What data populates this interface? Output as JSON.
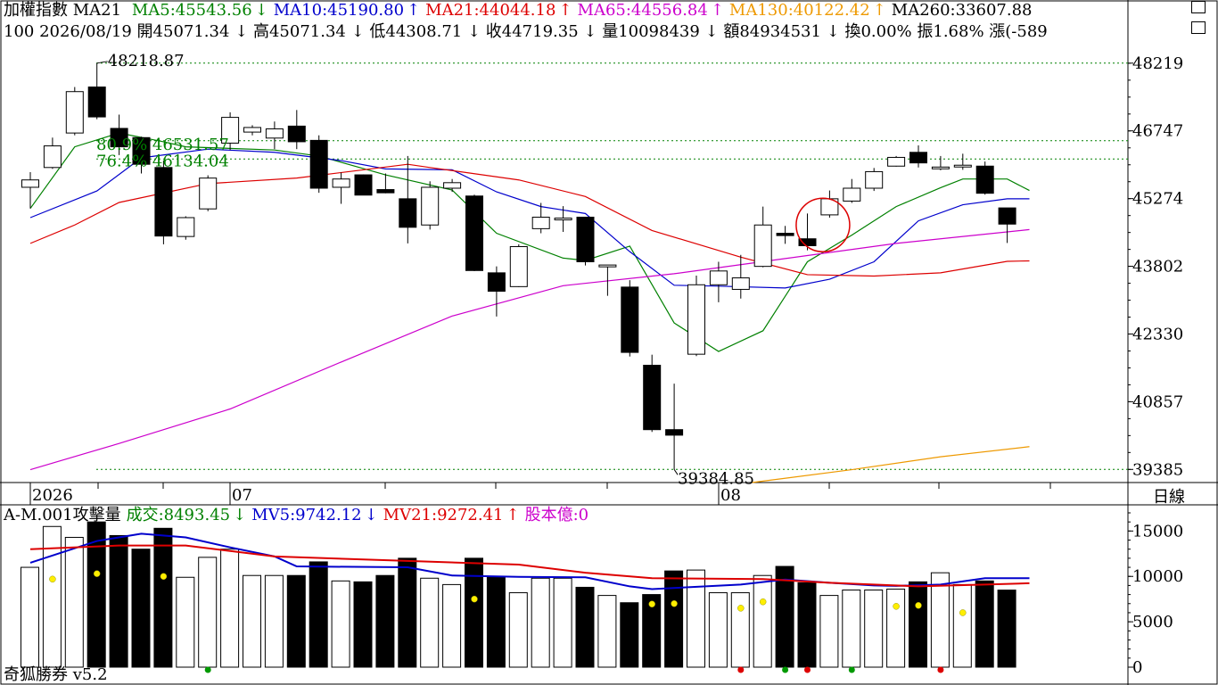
{
  "header": {
    "name": "加權指數",
    "ma_label": "MA21",
    "ma_values": [
      {
        "text": "MA5:45543.56",
        "arrow": "↓",
        "color": "#008000"
      },
      {
        "text": "MA10:45190.80",
        "arrow": "↑",
        "color": "#0000cc"
      },
      {
        "text": "MA21:44044.18",
        "arrow": "↑",
        "color": "#dd0000"
      },
      {
        "text": "MA65:44556.84",
        "arrow": "↑",
        "color": "#cc00cc"
      },
      {
        "text": "MA130:40122.42",
        "arrow": "↑",
        "color": "#ee9900"
      },
      {
        "text": "MA260:33607.88",
        "arrow": "",
        "color": "#000000"
      }
    ],
    "line2": "100 2026/08/19 開45071.34 ↓ 高45071.34 ↓ 低44308.71 ↓ 收44719.35 ↓ 量10098439 ↓ 額84934531 ↓ 換0.00% 振1.68% 漲(-589"
  },
  "axis_labels": {
    "price_ticks": [
      "48219",
      "46747",
      "45274",
      "43802",
      "42330",
      "40857",
      "39385"
    ],
    "volume_ticks": [
      "15000",
      "10000",
      "5000",
      "0"
    ],
    "x_labels": [
      "2026",
      "07",
      "08"
    ],
    "period": "日線"
  },
  "annotations": {
    "high": "48218.87",
    "low": "39384.85",
    "fib1": "80.9% 46531.57",
    "fib2": "76.4% 46134.04"
  },
  "volume_header": [
    {
      "text": "A-M.001攻擊量",
      "arrow": "",
      "color": "#000000"
    },
    {
      "text": "成交:8493.45",
      "arrow": "↓",
      "color": "#008000"
    },
    {
      "text": "MV5:9742.12",
      "arrow": "↓",
      "color": "#0000cc"
    },
    {
      "text": "MV21:9272.41",
      "arrow": "↑",
      "color": "#dd0000"
    },
    {
      "text": "股本億:0",
      "arrow": "",
      "color": "#cc00cc"
    }
  ],
  "footer": "奇狐勝券 v5.2",
  "chart_data": {
    "type": "candlestick",
    "price_range": [
      39100,
      48700
    ],
    "volume_range": [
      0,
      17000
    ],
    "candles": [
      {
        "o": 45520,
        "h": 45850,
        "l": 45060,
        "c": 45680,
        "v": 11000
      },
      {
        "o": 45950,
        "h": 46600,
        "l": 45920,
        "c": 46420,
        "v": 15500
      },
      {
        "o": 46700,
        "h": 47700,
        "l": 46650,
        "c": 47600,
        "v": 14300
      },
      {
        "o": 47700,
        "h": 48218.87,
        "l": 47000,
        "c": 47050,
        "v": 16000
      },
      {
        "o": 46800,
        "h": 47100,
        "l": 46220,
        "c": 46400,
        "v": 14500
      },
      {
        "o": 46600,
        "h": 46620,
        "l": 45820,
        "c": 46020,
        "v": 13000
      },
      {
        "o": 45950,
        "h": 46100,
        "l": 44280,
        "c": 44460,
        "v": 15300
      },
      {
        "o": 44450,
        "h": 44890,
        "l": 44380,
        "c": 44860,
        "v": 9900
      },
      {
        "o": 45050,
        "h": 45780,
        "l": 45000,
        "c": 45720,
        "v": 12100
      },
      {
        "o": 46480,
        "h": 47150,
        "l": 46330,
        "c": 47040,
        "v": 13000
      },
      {
        "o": 46720,
        "h": 46870,
        "l": 46650,
        "c": 46820,
        "v": 10100
      },
      {
        "o": 46590,
        "h": 46950,
        "l": 46350,
        "c": 46790,
        "v": 10100
      },
      {
        "o": 46850,
        "h": 47200,
        "l": 46350,
        "c": 46510,
        "v": 10100
      },
      {
        "o": 46540,
        "h": 46650,
        "l": 45400,
        "c": 45500,
        "v": 11600
      },
      {
        "o": 45520,
        "h": 45840,
        "l": 45160,
        "c": 45700,
        "v": 9500
      },
      {
        "o": 45790,
        "h": 45800,
        "l": 45350,
        "c": 45350,
        "v": 9400
      },
      {
        "o": 45470,
        "h": 45820,
        "l": 45390,
        "c": 45400,
        "v": 10100
      },
      {
        "o": 45270,
        "h": 46200,
        "l": 44300,
        "c": 44650,
        "v": 12000
      },
      {
        "o": 44700,
        "h": 45650,
        "l": 44600,
        "c": 45520,
        "v": 9800
      },
      {
        "o": 45500,
        "h": 45700,
        "l": 45420,
        "c": 45620,
        "v": 9100
      },
      {
        "o": 45330,
        "h": 45360,
        "l": 43700,
        "c": 43710,
        "v": 12000
      },
      {
        "o": 43660,
        "h": 43800,
        "l": 42710,
        "c": 43260,
        "v": 10000
      },
      {
        "o": 43360,
        "h": 44280,
        "l": 43350,
        "c": 44230,
        "v": 8200
      },
      {
        "o": 44620,
        "h": 45180,
        "l": 44520,
        "c": 44870,
        "v": 9800
      },
      {
        "o": 44830,
        "h": 45110,
        "l": 44550,
        "c": 44850,
        "v": 9800
      },
      {
        "o": 44870,
        "h": 44880,
        "l": 43820,
        "c": 43900,
        "v": 8800
      },
      {
        "o": 43790,
        "h": 43800,
        "l": 43160,
        "c": 43830,
        "v": 7900
      },
      {
        "o": 43350,
        "h": 43500,
        "l": 41840,
        "c": 41930,
        "v": 7100
      },
      {
        "o": 41650,
        "h": 41880,
        "l": 40200,
        "c": 40250,
        "v": 8000
      },
      {
        "o": 40250,
        "h": 41250,
        "l": 39384.85,
        "c": 40130,
        "v": 10600
      },
      {
        "o": 41890,
        "h": 43600,
        "l": 41850,
        "c": 43400,
        "v": 10700
      },
      {
        "o": 43400,
        "h": 43900,
        "l": 43020,
        "c": 43700,
        "v": 8200
      },
      {
        "o": 43300,
        "h": 44050,
        "l": 43100,
        "c": 43550,
        "v": 8200
      },
      {
        "o": 43800,
        "h": 45100,
        "l": 43780,
        "c": 44700,
        "v": 10100
      },
      {
        "o": 44520,
        "h": 44680,
        "l": 44290,
        "c": 44470,
        "v": 11100
      },
      {
        "o": 44400,
        "h": 44950,
        "l": 44150,
        "c": 44250,
        "v": 9300
      },
      {
        "o": 44920,
        "h": 45450,
        "l": 44860,
        "c": 45270,
        "v": 7900
      },
      {
        "o": 45220,
        "h": 45700,
        "l": 45180,
        "c": 45500,
        "v": 8500
      },
      {
        "o": 45500,
        "h": 45940,
        "l": 45440,
        "c": 45860,
        "v": 8500
      },
      {
        "o": 45980,
        "h": 46200,
        "l": 45970,
        "c": 46170,
        "v": 8600
      },
      {
        "o": 46280,
        "h": 46430,
        "l": 45950,
        "c": 46050,
        "v": 9400
      },
      {
        "o": 45950,
        "h": 46200,
        "l": 45890,
        "c": 45960,
        "v": 10400
      },
      {
        "o": 46000,
        "h": 46250,
        "l": 45900,
        "c": 46000,
        "v": 9100
      },
      {
        "o": 45980,
        "h": 46080,
        "l": 45360,
        "c": 45390,
        "v": 9500
      },
      {
        "o": 45071.34,
        "h": 45071.34,
        "l": 44308.71,
        "c": 44719.35,
        "v": 8493
      }
    ],
    "ma_lines": [
      {
        "name": "MA5",
        "color": "#008000",
        "values": [
          [
            0,
            45060
          ],
          [
            2,
            46400
          ],
          [
            4,
            46700
          ],
          [
            6,
            46510
          ],
          [
            7,
            46400
          ],
          [
            11,
            46330
          ],
          [
            13,
            46200
          ],
          [
            16,
            45790
          ],
          [
            19,
            45460
          ],
          [
            21,
            44520
          ],
          [
            24,
            43980
          ],
          [
            25,
            43930
          ],
          [
            27,
            44240
          ],
          [
            29,
            42570
          ],
          [
            31,
            41950
          ],
          [
            33,
            42400
          ],
          [
            35,
            43900
          ],
          [
            37,
            44480
          ],
          [
            39,
            45100
          ],
          [
            41,
            45510
          ],
          [
            42,
            45700
          ],
          [
            44,
            45700
          ],
          [
            45,
            45450
          ]
        ]
      },
      {
        "name": "MA10",
        "color": "#0000cc",
        "values": [
          [
            0,
            44860
          ],
          [
            3,
            45440
          ],
          [
            5,
            46160
          ],
          [
            8,
            46350
          ],
          [
            11,
            46280
          ],
          [
            14,
            46100
          ],
          [
            16,
            45920
          ],
          [
            19,
            45900
          ],
          [
            21,
            45420
          ],
          [
            23,
            45100
          ],
          [
            25,
            44950
          ],
          [
            27,
            44120
          ],
          [
            29,
            43390
          ],
          [
            31,
            43370
          ],
          [
            34,
            43330
          ],
          [
            36,
            43520
          ],
          [
            38,
            43900
          ],
          [
            40,
            44790
          ],
          [
            42,
            45140
          ],
          [
            44,
            45270
          ],
          [
            45,
            45270
          ]
        ]
      },
      {
        "name": "MA21",
        "color": "#dd0000",
        "values": [
          [
            0,
            44300
          ],
          [
            2,
            44700
          ],
          [
            4,
            45190
          ],
          [
            8,
            45600
          ],
          [
            12,
            45720
          ],
          [
            17,
            46020
          ],
          [
            18,
            45950
          ],
          [
            22,
            45680
          ],
          [
            25,
            45320
          ],
          [
            28,
            44580
          ],
          [
            32,
            44000
          ],
          [
            35,
            43620
          ],
          [
            38,
            43590
          ],
          [
            41,
            43660
          ],
          [
            44,
            43910
          ],
          [
            45,
            43920
          ]
        ]
      },
      {
        "name": "MA65",
        "color": "#cc00cc",
        "values": [
          [
            0,
            39380
          ],
          [
            4,
            39950
          ],
          [
            9,
            40700
          ],
          [
            14,
            41720
          ],
          [
            19,
            42720
          ],
          [
            24,
            43380
          ],
          [
            29,
            43640
          ],
          [
            34,
            43970
          ],
          [
            39,
            44300
          ],
          [
            45,
            44600
          ]
        ]
      },
      {
        "name": "MA130",
        "color": "#ee9900",
        "values": [
          [
            32.5,
            39100
          ],
          [
            37,
            39380
          ],
          [
            41,
            39660
          ],
          [
            45,
            39880
          ]
        ]
      }
    ],
    "mv_lines": [
      {
        "name": "MV5",
        "color": "#0000cc",
        "values": [
          [
            0,
            11500
          ],
          [
            3,
            13900
          ],
          [
            5,
            14700
          ],
          [
            7,
            14300
          ],
          [
            9,
            13200
          ],
          [
            11,
            12200
          ],
          [
            12,
            11100
          ],
          [
            17,
            11000
          ],
          [
            19,
            10100
          ],
          [
            22,
            9950
          ],
          [
            25,
            9900
          ],
          [
            27,
            8900
          ],
          [
            28,
            8600
          ],
          [
            32,
            9100
          ],
          [
            34,
            9650
          ],
          [
            36,
            9300
          ],
          [
            38,
            9000
          ],
          [
            39,
            8950
          ],
          [
            41,
            9100
          ],
          [
            43,
            9800
          ],
          [
            45,
            9800
          ]
        ]
      },
      {
        "name": "MV21",
        "color": "#dd0000",
        "values": [
          [
            0,
            13000
          ],
          [
            4,
            13400
          ],
          [
            7,
            13400
          ],
          [
            11,
            12200
          ],
          [
            17,
            11700
          ],
          [
            22,
            11300
          ],
          [
            25,
            10400
          ],
          [
            28,
            9800
          ],
          [
            33,
            9700
          ],
          [
            36,
            9300
          ],
          [
            40,
            8900
          ],
          [
            43,
            9100
          ],
          [
            45,
            9250
          ]
        ]
      }
    ],
    "yellow_dots": [
      [
        1,
        9700
      ],
      [
        3,
        10300
      ],
      [
        6,
        10000
      ],
      [
        20,
        7500
      ],
      [
        28,
        6950
      ],
      [
        29,
        7000
      ],
      [
        32,
        6500
      ],
      [
        33,
        7200
      ],
      [
        39,
        6700
      ],
      [
        40,
        6800
      ],
      [
        42,
        6000
      ]
    ],
    "bottom_dots": [
      {
        "i": 8,
        "color": "#009900"
      },
      {
        "i": 32,
        "color": "#dd0000"
      },
      {
        "i": 34,
        "color": "#009900"
      },
      {
        "i": 35,
        "color": "#dd0000"
      },
      {
        "i": 37,
        "color": "#009900"
      },
      {
        "i": 41,
        "color": "#dd0000"
      }
    ],
    "hlines": [
      {
        "value": 48219,
        "color": "#008000"
      },
      {
        "value": 46531.57,
        "color": "#008000"
      },
      {
        "value": 46134.04,
        "color": "#008000"
      },
      {
        "value": 39385,
        "color": "#008000"
      }
    ],
    "circle_at": {
      "i": 35.7,
      "value": 44700
    }
  }
}
